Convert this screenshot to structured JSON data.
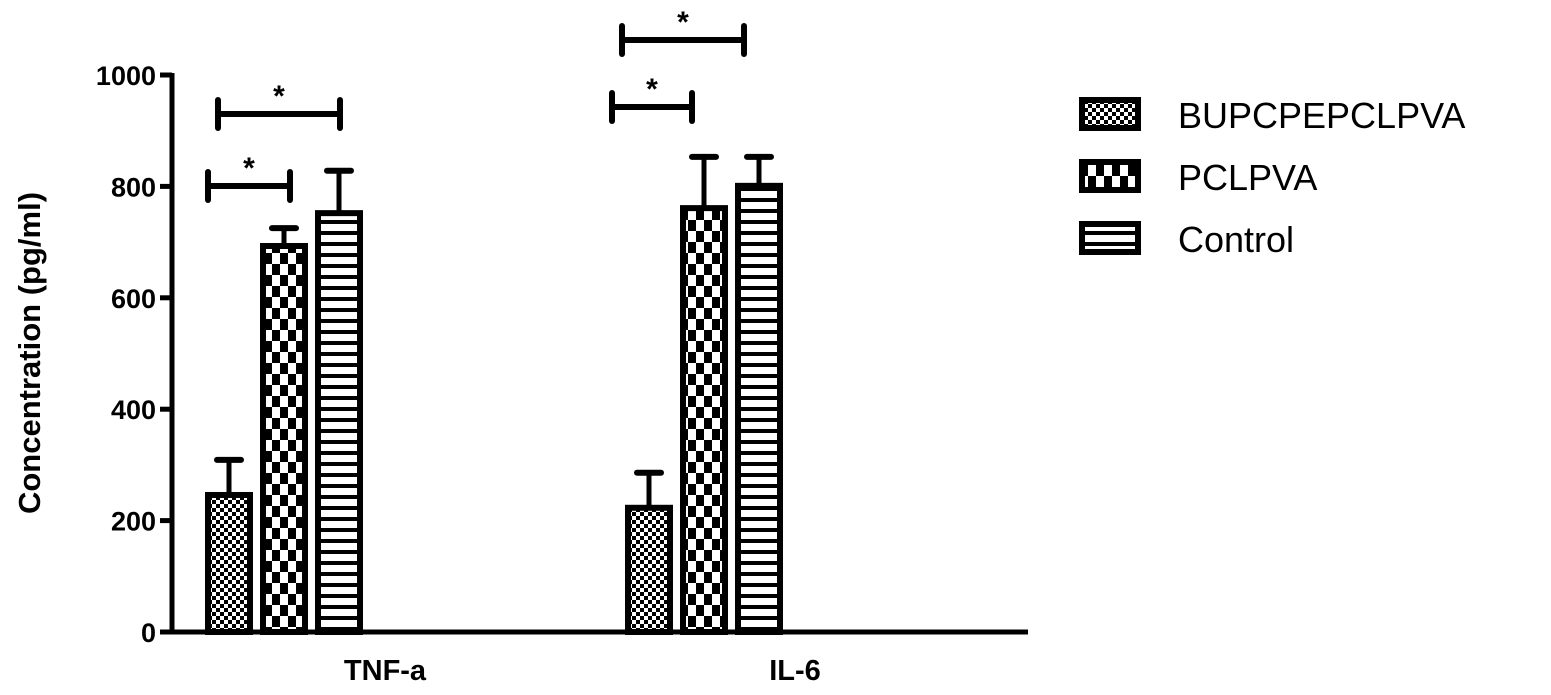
{
  "chart_data": {
    "type": "bar",
    "title": "",
    "xlabel": "",
    "ylabel": "Concentration (pg/ml)",
    "ylim": [
      0,
      1000
    ],
    "yticks": [
      0,
      200,
      400,
      600,
      800,
      1000
    ],
    "ytick_labels": [
      "0",
      "200",
      "400",
      "600",
      "800",
      "1000"
    ],
    "categories": [
      "TNF-a",
      "IL-6"
    ],
    "series": [
      {
        "name": "BUPCPEPCLPVA",
        "pattern": "fine-checker",
        "values": [
          246,
          223
        ],
        "error": [
          63,
          63
        ]
      },
      {
        "name": "PCLPVA",
        "pattern": "coarse-checker",
        "values": [
          693,
          761
        ],
        "error": [
          32,
          92
        ]
      },
      {
        "name": "Control",
        "pattern": "horizontal-stripes",
        "values": [
          752,
          801
        ],
        "error": [
          76,
          52
        ]
      }
    ],
    "legend_placement": "right",
    "grid": false,
    "color": "#000000",
    "annotations": [
      {
        "category": "TNF-a",
        "from": "BUPCPEPCLPVA",
        "to": "PCLPVA",
        "label": "*"
      },
      {
        "category": "TNF-a",
        "from": "BUPCPEPCLPVA",
        "to": "Control",
        "label": "*"
      },
      {
        "category": "IL-6",
        "from": "BUPCPEPCLPVA",
        "to": "PCLPVA",
        "label": "*"
      },
      {
        "category": "IL-6",
        "from": "BUPCPEPCLPVA",
        "to": "Control",
        "label": "*"
      }
    ]
  }
}
